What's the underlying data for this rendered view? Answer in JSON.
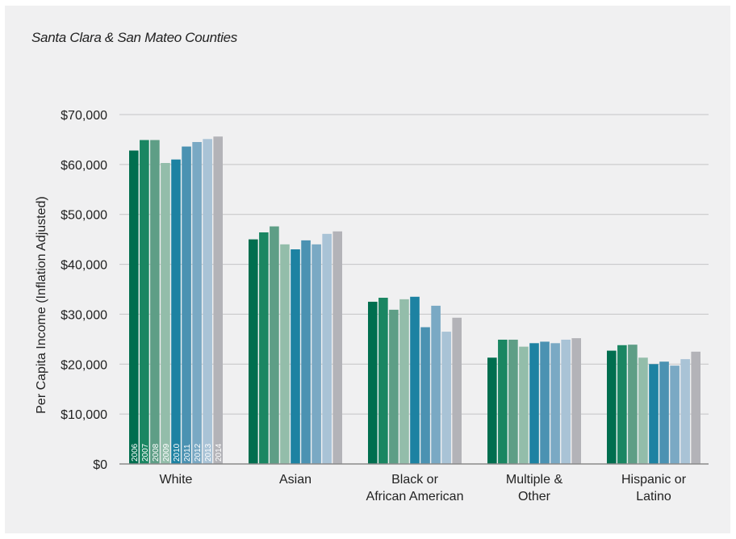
{
  "subtitle": "Santa Clara & San Mateo Counties",
  "chart_data": {
    "type": "bar",
    "title": "",
    "subtitle": "Santa Clara & San Mateo Counties",
    "xlabel": "",
    "ylabel": "Per Capita Income (Inflation Adjusted)",
    "ylim": [
      0,
      70000
    ],
    "yticks": [
      0,
      10000,
      20000,
      30000,
      40000,
      50000,
      60000,
      70000
    ],
    "ytick_labels": [
      "$0",
      "$10,000",
      "$20,000",
      "$30,000",
      "$40,000",
      "$50,000",
      "$60,000",
      "$70,000"
    ],
    "grid": true,
    "legend": "year labels printed inside the bars of the first group",
    "categories": [
      [
        "White"
      ],
      [
        "Asian"
      ],
      [
        "Black or",
        "African American"
      ],
      [
        "Multiple &",
        "Other"
      ],
      [
        "Hispanic or",
        "Latino"
      ]
    ],
    "series": [
      {
        "name": "2006",
        "color": "#006e4f",
        "values": [
          62800,
          45000,
          32500,
          21300,
          22700
        ]
      },
      {
        "name": "2007",
        "color": "#1a8662",
        "values": [
          64900,
          46400,
          33300,
          24900,
          23800
        ]
      },
      {
        "name": "2008",
        "color": "#5e9e86",
        "values": [
          64900,
          47600,
          30900,
          24900,
          23900
        ]
      },
      {
        "name": "2009",
        "color": "#93bdaa",
        "values": [
          60300,
          44000,
          33000,
          23500,
          21300
        ]
      },
      {
        "name": "2010",
        "color": "#1d82a2",
        "values": [
          61000,
          43000,
          33500,
          24200,
          20000
        ]
      },
      {
        "name": "2011",
        "color": "#4b92b2",
        "values": [
          63600,
          44800,
          27400,
          24500,
          20500
        ]
      },
      {
        "name": "2012",
        "color": "#7aa9c4",
        "values": [
          64500,
          44000,
          31700,
          24200,
          19700
        ]
      },
      {
        "name": "2013",
        "color": "#a9c3d6",
        "values": [
          65100,
          46100,
          26500,
          24900,
          21000
        ]
      },
      {
        "name": "2014",
        "color": "#b3b3b8",
        "values": [
          65600,
          46600,
          29300,
          25200,
          22500
        ]
      }
    ]
  }
}
